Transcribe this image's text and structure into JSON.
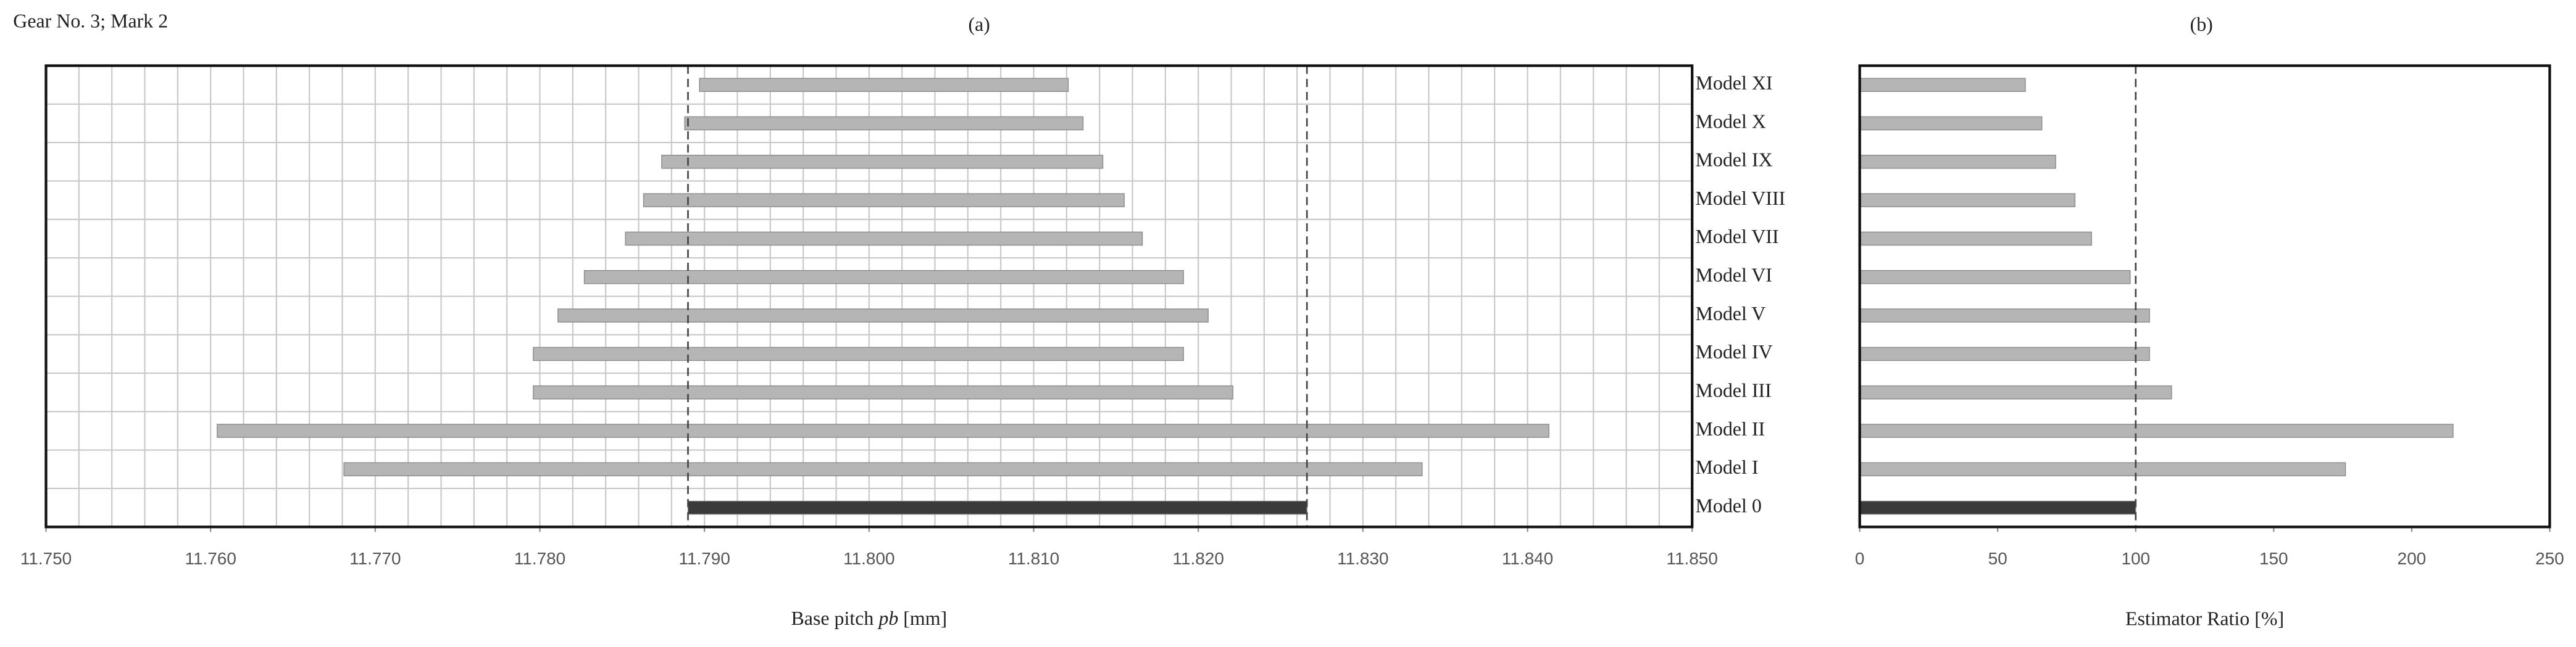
{
  "header": "Gear No. 3; Mark 2",
  "chart_data": [
    {
      "type": "range_bar",
      "title": "(a)",
      "xlabel": [
        "Base pitch ",
        "pb",
        " [mm]"
      ],
      "categories": [
        "Model 0",
        "Model I",
        "Model II",
        "Model III",
        "Model IV",
        "Model V",
        "Model VI",
        "Model VII",
        "Model VIII",
        "Model IX",
        "Model X",
        "Model XI"
      ],
      "low": [
        11.789,
        11.7681,
        11.7604,
        11.7796,
        11.7796,
        11.7811,
        11.7827,
        11.7852,
        11.7863,
        11.7874,
        11.7888,
        11.7897
      ],
      "high": [
        11.8266,
        11.8336,
        11.8413,
        11.8221,
        11.8191,
        11.8206,
        11.8191,
        11.8166,
        11.8155,
        11.8142,
        11.813,
        11.8121
      ],
      "colors": [
        "#3a3a3a",
        "#b5b5b5",
        "#b5b5b5",
        "#b5b5b5",
        "#b5b5b5",
        "#b5b5b5",
        "#b5b5b5",
        "#b5b5b5",
        "#b5b5b5",
        "#b5b5b5",
        "#b5b5b5",
        "#b5b5b5"
      ],
      "xlim": [
        11.75,
        11.85
      ],
      "xticks": [
        {
          "value": 11.75,
          "label": "11.750"
        },
        {
          "value": 11.76,
          "label": "11.760"
        },
        {
          "value": 11.77,
          "label": "11.770"
        },
        {
          "value": 11.78,
          "label": "11.780"
        },
        {
          "value": 11.79,
          "label": "11.790"
        },
        {
          "value": 11.8,
          "label": "11.800"
        },
        {
          "value": 11.81,
          "label": "11.810"
        },
        {
          "value": 11.82,
          "label": "11.820"
        },
        {
          "value": 11.83,
          "label": "11.830"
        },
        {
          "value": 11.84,
          "label": "11.840"
        },
        {
          "value": 11.85,
          "label": "11.850"
        }
      ],
      "reference_lines": [
        11.789,
        11.8266
      ],
      "grid": true,
      "grid_step": 0.002
    },
    {
      "type": "bar",
      "title": "(b)",
      "xlabel": "Estimator Ratio [%]",
      "values": [
        100,
        176,
        215,
        113,
        105,
        105,
        98,
        84,
        78,
        71,
        66,
        60
      ],
      "colors": [
        "#3a3a3a",
        "#b5b5b5",
        "#b5b5b5",
        "#b5b5b5",
        "#b5b5b5",
        "#b5b5b5",
        "#b5b5b5",
        "#b5b5b5",
        "#b5b5b5",
        "#b5b5b5",
        "#b5b5b5",
        "#b5b5b5"
      ],
      "xlim": [
        0,
        250
      ],
      "xticks": [
        0,
        50,
        100,
        150,
        200,
        250
      ],
      "reference_lines": [
        100
      ],
      "grid": false
    }
  ]
}
